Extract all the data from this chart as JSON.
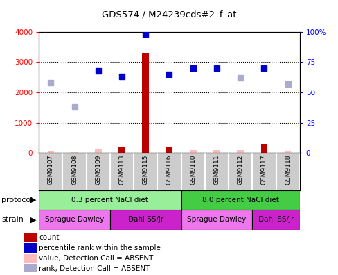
{
  "title": "GDS574 / M24239cds#2_f_at",
  "samples": [
    "GSM9107",
    "GSM9108",
    "GSM9109",
    "GSM9113",
    "GSM9115",
    "GSM9116",
    "GSM9110",
    "GSM9111",
    "GSM9112",
    "GSM9117",
    "GSM9118"
  ],
  "count_values": [
    50,
    25,
    110,
    190,
    3300,
    190,
    90,
    100,
    90,
    270,
    55
  ],
  "count_absent": [
    true,
    true,
    true,
    false,
    false,
    false,
    true,
    true,
    true,
    false,
    true
  ],
  "percentile_values": [
    58,
    38,
    68,
    63,
    98,
    65,
    70,
    70,
    62,
    70,
    57
  ],
  "percentile_absent": [
    true,
    true,
    false,
    false,
    false,
    false,
    false,
    false,
    true,
    false,
    true
  ],
  "count_color": "#bb0000",
  "count_absent_color": "#ffbbbb",
  "percentile_color": "#0000cc",
  "percentile_absent_color": "#aaaacc",
  "ylim_left": [
    0,
    4000
  ],
  "ylim_right": [
    0,
    100
  ],
  "yticks_left": [
    0,
    1000,
    2000,
    3000,
    4000
  ],
  "ytick_labels_left": [
    "0",
    "1000",
    "2000",
    "3000",
    "4000"
  ],
  "yticks_right": [
    0,
    25,
    50,
    75,
    100
  ],
  "ytick_labels_right": [
    "0",
    "25",
    "50",
    "75",
    "100%"
  ],
  "protocol_groups": [
    {
      "label": "0.3 percent NaCl diet",
      "start": 0,
      "end": 5,
      "color": "#99ee99"
    },
    {
      "label": "8.0 percent NaCl diet",
      "start": 6,
      "end": 10,
      "color": "#44cc44"
    }
  ],
  "strain_groups": [
    {
      "label": "Sprague Dawley",
      "start": 0,
      "end": 2,
      "color": "#ee77ee"
    },
    {
      "label": "Dahl SS/Jr",
      "start": 3,
      "end": 5,
      "color": "#cc22cc"
    },
    {
      "label": "Sprague Dawley",
      "start": 6,
      "end": 8,
      "color": "#ee77ee"
    },
    {
      "label": "Dahl SS/Jr",
      "start": 9,
      "end": 10,
      "color": "#cc22cc"
    }
  ],
  "legend_items": [
    {
      "label": "count",
      "color": "#bb0000"
    },
    {
      "label": "percentile rank within the sample",
      "color": "#0000cc"
    },
    {
      "label": "value, Detection Call = ABSENT",
      "color": "#ffbbbb"
    },
    {
      "label": "rank, Detection Call = ABSENT",
      "color": "#aaaacc"
    }
  ],
  "background_color": "#ffffff",
  "sample_bg_color": "#cccccc"
}
